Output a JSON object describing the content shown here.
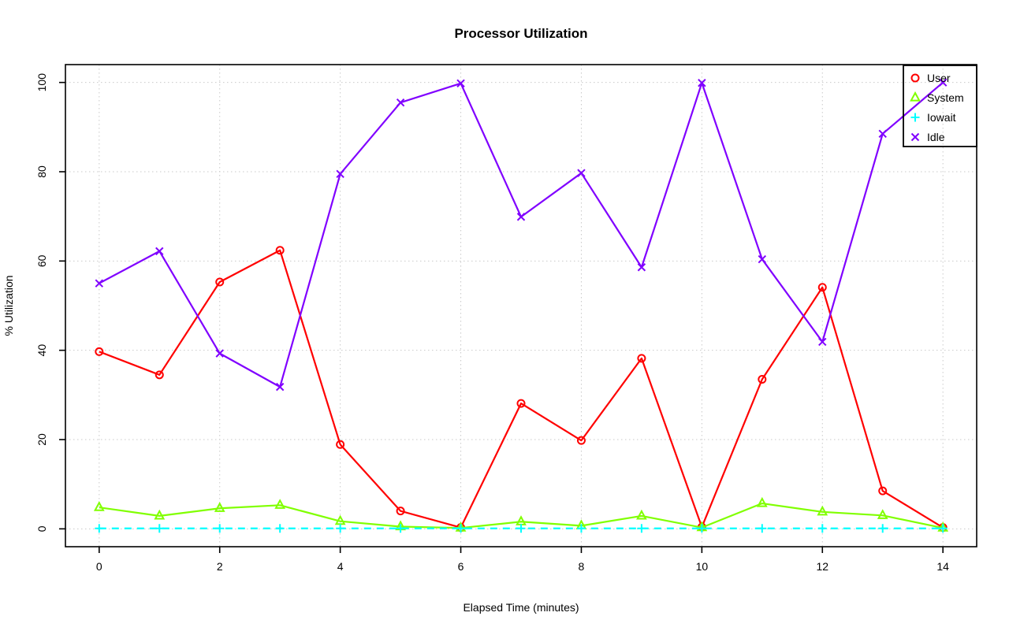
{
  "title": "Processor Utilization",
  "chart_data": {
    "type": "line",
    "title": "Processor Utilization",
    "xlabel": "Elapsed Time (minutes)",
    "ylabel": "% Utilization",
    "x": [
      0,
      1,
      2,
      3,
      4,
      5,
      6,
      7,
      8,
      9,
      10,
      11,
      12,
      13,
      14
    ],
    "x_ticks": [
      0,
      2,
      4,
      6,
      8,
      10,
      12,
      14
    ],
    "y_ticks": [
      0,
      20,
      40,
      60,
      80,
      100
    ],
    "xlim": [
      0,
      14
    ],
    "ylim": [
      0,
      100
    ],
    "grid": "dotted-lightgrey",
    "legend_position": "topright",
    "legend_entries": [
      "User",
      "System",
      "Iowait",
      "Idle"
    ],
    "series": [
      {
        "name": "User",
        "color": "#FF0000",
        "marker": "circle",
        "line": "solid",
        "values": [
          39.7,
          34.5,
          55.3,
          62.4,
          18.9,
          4.0,
          0.3,
          28.1,
          19.8,
          38.2,
          0.4,
          33.5,
          54.1,
          8.5,
          0.3
        ]
      },
      {
        "name": "System",
        "color": "#80FF00",
        "marker": "triangle",
        "line": "solid",
        "values": [
          4.8,
          2.9,
          4.6,
          5.3,
          1.7,
          0.5,
          0.2,
          1.6,
          0.7,
          2.9,
          0.3,
          5.7,
          3.8,
          3.0,
          0.2
        ]
      },
      {
        "name": "Iowait",
        "color": "#00FFFF",
        "marker": "plus",
        "line": "dashed",
        "values": [
          0.1,
          0.1,
          0.1,
          0.1,
          0.1,
          0.1,
          0.1,
          0.1,
          0.1,
          0.1,
          0.1,
          0.1,
          0.1,
          0.1,
          0.1
        ]
      },
      {
        "name": "Idle",
        "color": "#8000FF",
        "marker": "x",
        "line": "solid",
        "values": [
          55.0,
          62.2,
          39.3,
          31.8,
          79.5,
          95.5,
          99.8,
          69.9,
          79.7,
          58.6,
          99.9,
          60.4,
          41.9,
          88.5,
          100.0
        ]
      }
    ]
  }
}
